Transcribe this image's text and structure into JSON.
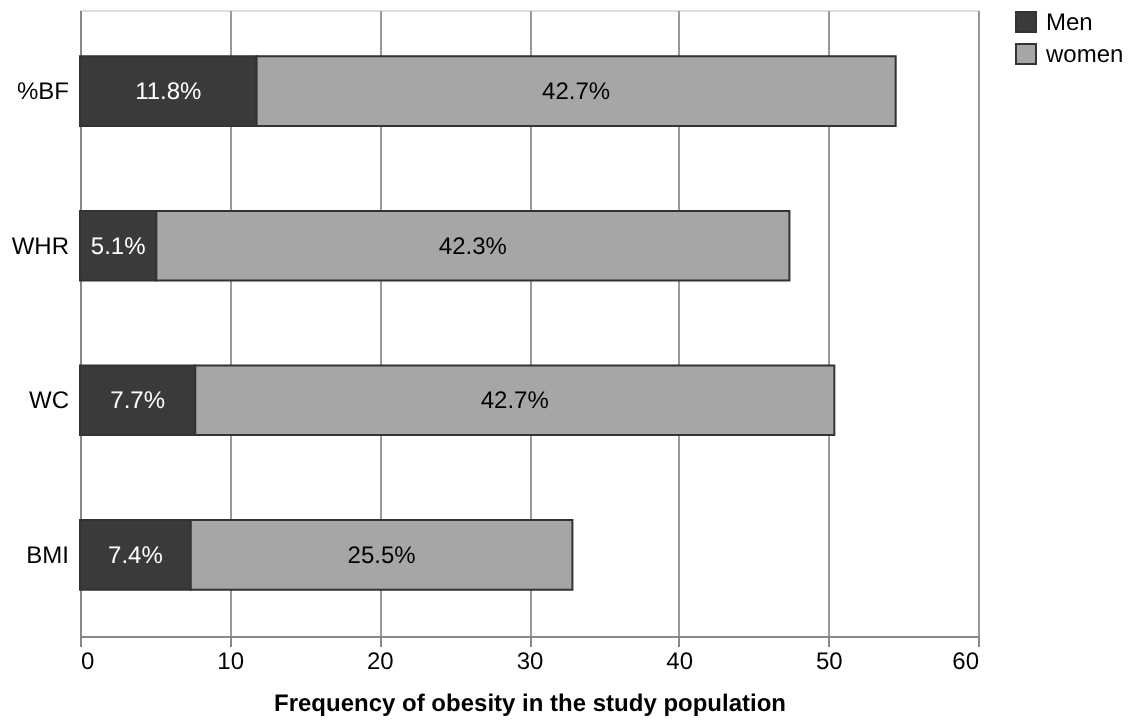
{
  "chart_data": {
    "type": "bar",
    "orientation": "horizontal",
    "stacked": true,
    "xlabel": "Frequency of obesity in the study population",
    "categories": [
      "%BF",
      "WHR",
      "WC",
      "BMI"
    ],
    "series": [
      {
        "name": "Men",
        "color": "#3a3a3a",
        "values": [
          11.8,
          5.1,
          7.7,
          7.4
        ],
        "value_labels": [
          "11.8%",
          "5.1%",
          "7.7%",
          "7.4%"
        ]
      },
      {
        "name": "women",
        "color": "#a6a6a6",
        "values": [
          42.7,
          42.3,
          42.7,
          25.5
        ],
        "value_labels": [
          "42.7%",
          "42.3%",
          "42.7%",
          "25.5%"
        ]
      }
    ],
    "xlim": [
      0,
      60
    ],
    "xticks": [
      0,
      10,
      20,
      30,
      40,
      50,
      60
    ],
    "grid": "x",
    "legend": "top right"
  }
}
